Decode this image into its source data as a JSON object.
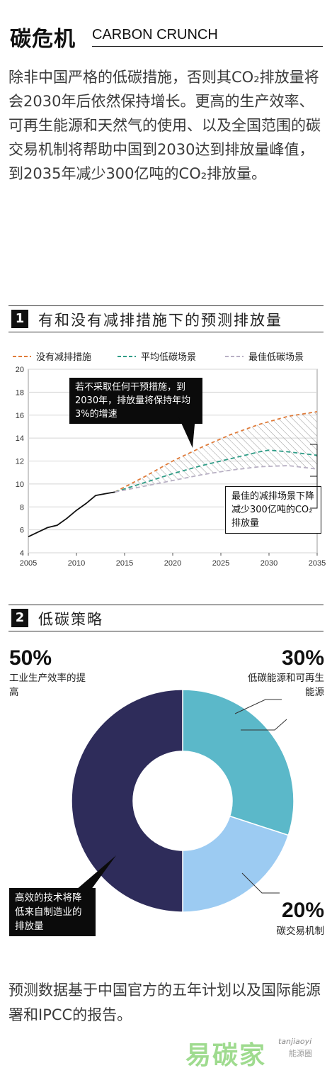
{
  "header": {
    "title_cn": "碳危机",
    "title_en": "CARBON CRUNCH"
  },
  "intro": "除非中国严格的低碳措施，否则其CO₂排放量将会2030年后依然保持增长。更高的生产效率、可再生能源和天然气的使用、以及全国范围的碳交易机制将帮助中国到2030达到排放量峰值，到2035年减少300亿吨的CO₂排放量。",
  "section1": {
    "num": "1",
    "title": "有和没有减排措施下的预测排放量"
  },
  "section2": {
    "num": "2",
    "title": "低碳策略"
  },
  "colors": {
    "no_measures": "#e07b39",
    "avg_scenario": "#2e9c86",
    "best_scenario": "#b8b0c4",
    "hatch": "#aaaaaa",
    "history": "#111111"
  },
  "chart_data": [
    {
      "type": "line",
      "xlim": [
        2005,
        2035
      ],
      "ylim": [
        4,
        20
      ],
      "x_ticks": [
        "2005",
        "2010",
        "2015",
        "2020",
        "2025",
        "2030",
        "2035"
      ],
      "y_ticks": [
        "4",
        "6",
        "8",
        "10",
        "12",
        "14",
        "16",
        "18",
        "20"
      ],
      "grid": true,
      "legend_position": "top",
      "series": [
        {
          "name": "",
          "style": "solid",
          "x": [
            2005,
            2006,
            2007,
            2008,
            2009,
            2010,
            2011,
            2012,
            2013,
            2014
          ],
          "y": [
            5.4,
            5.8,
            6.2,
            6.4,
            7.0,
            7.7,
            8.3,
            9.0,
            9.15,
            9.3
          ]
        },
        {
          "name": "没有减排措施",
          "style": "dashed",
          "x": [
            2014,
            2017,
            2020,
            2023,
            2026,
            2029,
            2032,
            2035
          ],
          "y": [
            9.3,
            10.6,
            12.0,
            13.2,
            14.3,
            15.2,
            15.9,
            16.3
          ]
        },
        {
          "name": "平均低碳场景",
          "style": "dashed",
          "x": [
            2014,
            2017,
            2020,
            2023,
            2026,
            2029,
            2030,
            2032,
            2035
          ],
          "y": [
            9.3,
            10.1,
            10.9,
            11.6,
            12.2,
            12.8,
            12.95,
            12.8,
            12.5
          ]
        },
        {
          "name": "最佳低碳场景",
          "style": "dashed",
          "x": [
            2014,
            2017,
            2020,
            2023,
            2026,
            2029,
            2032,
            2035
          ],
          "y": [
            9.3,
            9.8,
            10.3,
            10.8,
            11.2,
            11.5,
            11.6,
            11.3
          ]
        }
      ],
      "annotations": [
        "若不采取任何干预措施，到2030年，排放量将保持年均3%的增速",
        "最佳的减排场景下降减少300亿吨的CO₂排放量"
      ]
    },
    {
      "type": "pie",
      "labels": [
        "低碳能源和可再生能源",
        "碳交易机制",
        "工业生产效率的提高"
      ],
      "values": [
        30,
        20,
        50
      ],
      "percent_labels": [
        "30%",
        "20%",
        "50%"
      ],
      "colors": [
        "#5bb8c9",
        "#9ccbf2",
        "#2e2c5a"
      ],
      "annotation": "高效的技术将降低来自制造业的排放量"
    }
  ],
  "pie_labels": {
    "p50": "50%",
    "p50_label": "工业生产效率的提高",
    "p30": "30%",
    "p30_label": "低碳能源和可再生能源",
    "p20": "20%",
    "p20_label": "碳交易机制"
  },
  "footnote": "预测数据基于中国官方的五年计划以及国际能源署和IPCC的报告。",
  "watermark": {
    "brand": "易碳家",
    "handle": "tanjiaoyi",
    "sub": "能源圈"
  }
}
